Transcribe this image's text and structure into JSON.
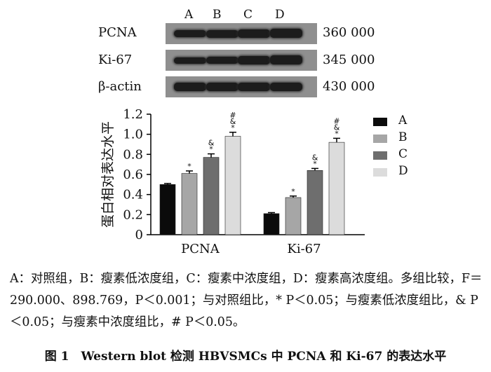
{
  "blot": {
    "lanes": [
      "A",
      "B",
      "C",
      "D"
    ],
    "rows": [
      {
        "protein": "PCNA",
        "mw": "360 000"
      },
      {
        "protein": "Ki-67",
        "mw": "345 000"
      },
      {
        "protein": "β-actin",
        "mw": "430 000"
      }
    ]
  },
  "chart_data": {
    "type": "bar",
    "ylabel": "蛋白相对表达水平",
    "xlabel": "",
    "categories": [
      "PCNA",
      "Ki-67"
    ],
    "ylim": [
      0,
      1.2
    ],
    "yticks": [
      "0",
      "0.2",
      "0.4",
      "0.6",
      "0.8",
      "1.0",
      "1.2"
    ],
    "series": [
      {
        "name": "A",
        "values": [
          0.5,
          0.21
        ],
        "errors": [
          0.01,
          0.01
        ],
        "marks": [
          "",
          ""
        ],
        "color": "#0b0b0b"
      },
      {
        "name": "B",
        "values": [
          0.61,
          0.37
        ],
        "errors": [
          0.025,
          0.015
        ],
        "marks": [
          "*",
          "*"
        ],
        "color": "#a6a6a6"
      },
      {
        "name": "C",
        "values": [
          0.77,
          0.64
        ],
        "errors": [
          0.035,
          0.02
        ],
        "marks": [
          "*&",
          "*&"
        ],
        "color": "#6e6e6e"
      },
      {
        "name": "D",
        "values": [
          0.98,
          0.92
        ],
        "errors": [
          0.04,
          0.04
        ],
        "marks": [
          "*&#",
          "*&#"
        ],
        "color": "#dcdcdc"
      }
    ],
    "legend_position": "right"
  },
  "caption": {
    "text": "A：对照组，B：瘦素低浓度组，C：瘦素中浓度组，D：瘦素高浓度组。多组比较，F＝290.000、898.769，P＜0.001；与对照组比，* P＜0.05；与瘦素低浓度组比，& P＜0.05；与瘦素中浓度组比，# P＜0.05。"
  },
  "figure_title": "图 1　Western blot 检测 HBVSMCs 中 PCNA 和 Ki-67 的表达水平"
}
